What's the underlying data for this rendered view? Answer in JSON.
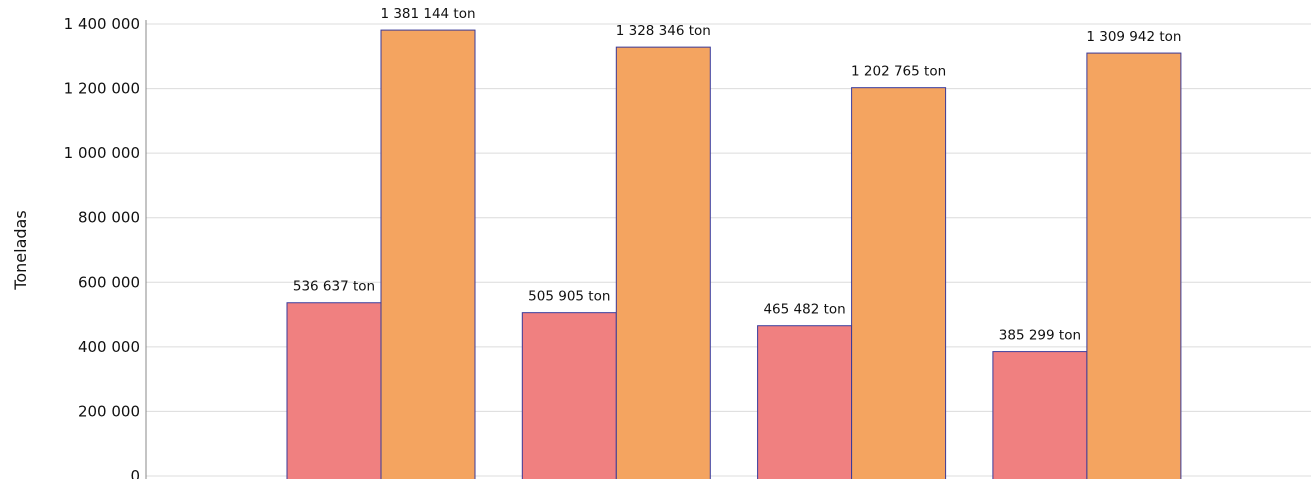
{
  "chart_data": {
    "type": "bar",
    "title": "",
    "xlabel": "",
    "ylabel": "Toneladas",
    "ylim": [
      0,
      1400000
    ],
    "yticks": [
      0,
      200000,
      400000,
      600000,
      800000,
      1000000,
      1200000,
      1400000
    ],
    "ytick_labels": [
      "0",
      "200 000",
      "400 000",
      "600 000",
      "800 000",
      "1 000 000",
      "1 200 000",
      "1 400 000"
    ],
    "grid": true,
    "legend": "none",
    "categories": [
      "",
      "",
      "",
      ""
    ],
    "series": [
      {
        "color": "#f08080",
        "values": [
          536637,
          505905,
          465482,
          385299
        ],
        "labels": [
          "536 637 ton",
          "505 905 ton",
          "465 482 ton",
          "385 299 ton"
        ]
      },
      {
        "color": "#f4a460",
        "values": [
          1381144,
          1328346,
          1202765,
          1309942
        ],
        "labels": [
          "1 381 144 ton",
          "1 328 346 ton",
          "1 202 765 ton",
          "1 309 942 ton"
        ]
      }
    ]
  }
}
